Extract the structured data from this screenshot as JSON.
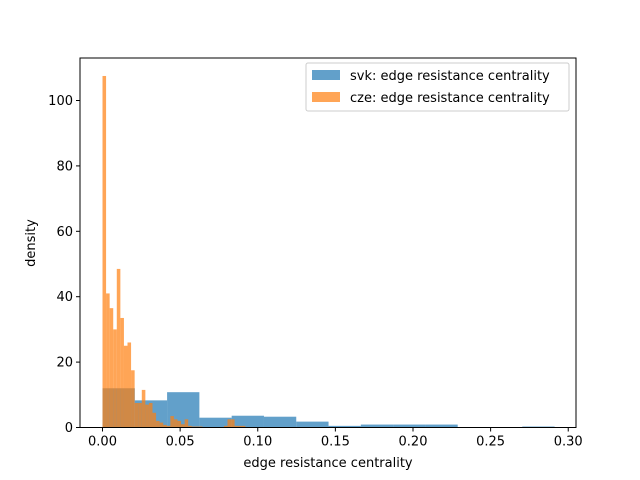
{
  "chart_data": {
    "type": "histogram",
    "xlabel": "edge resistance centrality",
    "ylabel": "density",
    "xlim": [
      -0.0145,
      0.305
    ],
    "ylim": [
      0,
      113
    ],
    "x_ticks": [
      0.0,
      0.05,
      0.1,
      0.15,
      0.2,
      0.25,
      0.3
    ],
    "x_tick_labels": [
      "0.00",
      "0.05",
      "0.10",
      "0.15",
      "0.20",
      "0.25",
      "0.30"
    ],
    "y_ticks": [
      0,
      20,
      40,
      60,
      80,
      100
    ],
    "y_tick_labels": [
      "0",
      "20",
      "40",
      "60",
      "80",
      "100"
    ],
    "grid": false,
    "legend_position": "upper right",
    "series": [
      {
        "name": "svk: edge resistance centrality",
        "color": "#1f77b4",
        "alpha": 0.7,
        "bins": [
          {
            "x0": 0.0,
            "x1": 0.0208,
            "density": 12.0
          },
          {
            "x0": 0.0208,
            "x1": 0.0416,
            "density": 8.3
          },
          {
            "x0": 0.0416,
            "x1": 0.0624,
            "density": 10.8
          },
          {
            "x0": 0.0624,
            "x1": 0.0832,
            "density": 3.0
          },
          {
            "x0": 0.0832,
            "x1": 0.104,
            "density": 3.6
          },
          {
            "x0": 0.104,
            "x1": 0.1248,
            "density": 3.3
          },
          {
            "x0": 0.1248,
            "x1": 0.1456,
            "density": 1.8
          },
          {
            "x0": 0.1456,
            "x1": 0.1664,
            "density": 0.5
          },
          {
            "x0": 0.1664,
            "x1": 0.1872,
            "density": 0.9
          },
          {
            "x0": 0.1872,
            "x1": 0.208,
            "density": 0.9
          },
          {
            "x0": 0.208,
            "x1": 0.2288,
            "density": 0.9
          },
          {
            "x0": 0.2288,
            "x1": 0.2496,
            "density": 0.0
          },
          {
            "x0": 0.2496,
            "x1": 0.2704,
            "density": 0.0
          },
          {
            "x0": 0.2704,
            "x1": 0.2912,
            "density": 0.3
          }
        ]
      },
      {
        "name": "cze: edge resistance centrality",
        "color": "#ff7f0e",
        "alpha": 0.7,
        "bins": [
          {
            "x0": 0.0,
            "x1": 0.0023,
            "density": 107.5
          },
          {
            "x0": 0.0023,
            "x1": 0.0046,
            "density": 41.0
          },
          {
            "x0": 0.0046,
            "x1": 0.0069,
            "density": 36.5
          },
          {
            "x0": 0.0069,
            "x1": 0.0092,
            "density": 30.0
          },
          {
            "x0": 0.0092,
            "x1": 0.0115,
            "density": 48.5
          },
          {
            "x0": 0.0115,
            "x1": 0.0138,
            "density": 33.5
          },
          {
            "x0": 0.0138,
            "x1": 0.0161,
            "density": 25.0
          },
          {
            "x0": 0.0161,
            "x1": 0.0184,
            "density": 26.0
          },
          {
            "x0": 0.0184,
            "x1": 0.0207,
            "density": 17.5
          },
          {
            "x0": 0.0207,
            "x1": 0.023,
            "density": 7.5
          },
          {
            "x0": 0.023,
            "x1": 0.0253,
            "density": 7.5
          },
          {
            "x0": 0.0253,
            "x1": 0.0276,
            "density": 11.5
          },
          {
            "x0": 0.0276,
            "x1": 0.0299,
            "density": 7.0
          },
          {
            "x0": 0.0299,
            "x1": 0.0322,
            "density": 7.5
          },
          {
            "x0": 0.0322,
            "x1": 0.0345,
            "density": 4.5
          },
          {
            "x0": 0.0345,
            "x1": 0.0368,
            "density": 2.0
          },
          {
            "x0": 0.0368,
            "x1": 0.0391,
            "density": 1.5
          },
          {
            "x0": 0.0391,
            "x1": 0.0414,
            "density": 0.8
          },
          {
            "x0": 0.0414,
            "x1": 0.0437,
            "density": 0.5
          },
          {
            "x0": 0.0437,
            "x1": 0.046,
            "density": 3.5
          },
          {
            "x0": 0.046,
            "x1": 0.0483,
            "density": 2.5
          },
          {
            "x0": 0.0483,
            "x1": 0.0506,
            "density": 2.0
          },
          {
            "x0": 0.0506,
            "x1": 0.0529,
            "density": 1.0
          },
          {
            "x0": 0.0529,
            "x1": 0.0552,
            "density": 2.5
          },
          {
            "x0": 0.0552,
            "x1": 0.0575,
            "density": 0.5
          },
          {
            "x0": 0.0575,
            "x1": 0.0598,
            "density": 0.3
          },
          {
            "x0": 0.0598,
            "x1": 0.0621,
            "density": 0.3
          },
          {
            "x0": 0.0621,
            "x1": 0.0644,
            "density": 0.3
          },
          {
            "x0": 0.0644,
            "x1": 0.0667,
            "density": 0.0
          },
          {
            "x0": 0.0667,
            "x1": 0.069,
            "density": 0.0
          },
          {
            "x0": 0.069,
            "x1": 0.0713,
            "density": 0.0
          },
          {
            "x0": 0.0713,
            "x1": 0.0736,
            "density": 0.0
          },
          {
            "x0": 0.0736,
            "x1": 0.0759,
            "density": 0.0
          },
          {
            "x0": 0.0759,
            "x1": 0.0782,
            "density": 0.0
          },
          {
            "x0": 0.0782,
            "x1": 0.0805,
            "density": 0.5
          },
          {
            "x0": 0.0805,
            "x1": 0.0828,
            "density": 2.5
          },
          {
            "x0": 0.0828,
            "x1": 0.0851,
            "density": 2.5
          },
          {
            "x0": 0.0851,
            "x1": 0.0874,
            "density": 0.5
          },
          {
            "x0": 0.0874,
            "x1": 0.0897,
            "density": 0.5
          },
          {
            "x0": 0.0897,
            "x1": 0.092,
            "density": 0.5
          }
        ]
      }
    ]
  }
}
